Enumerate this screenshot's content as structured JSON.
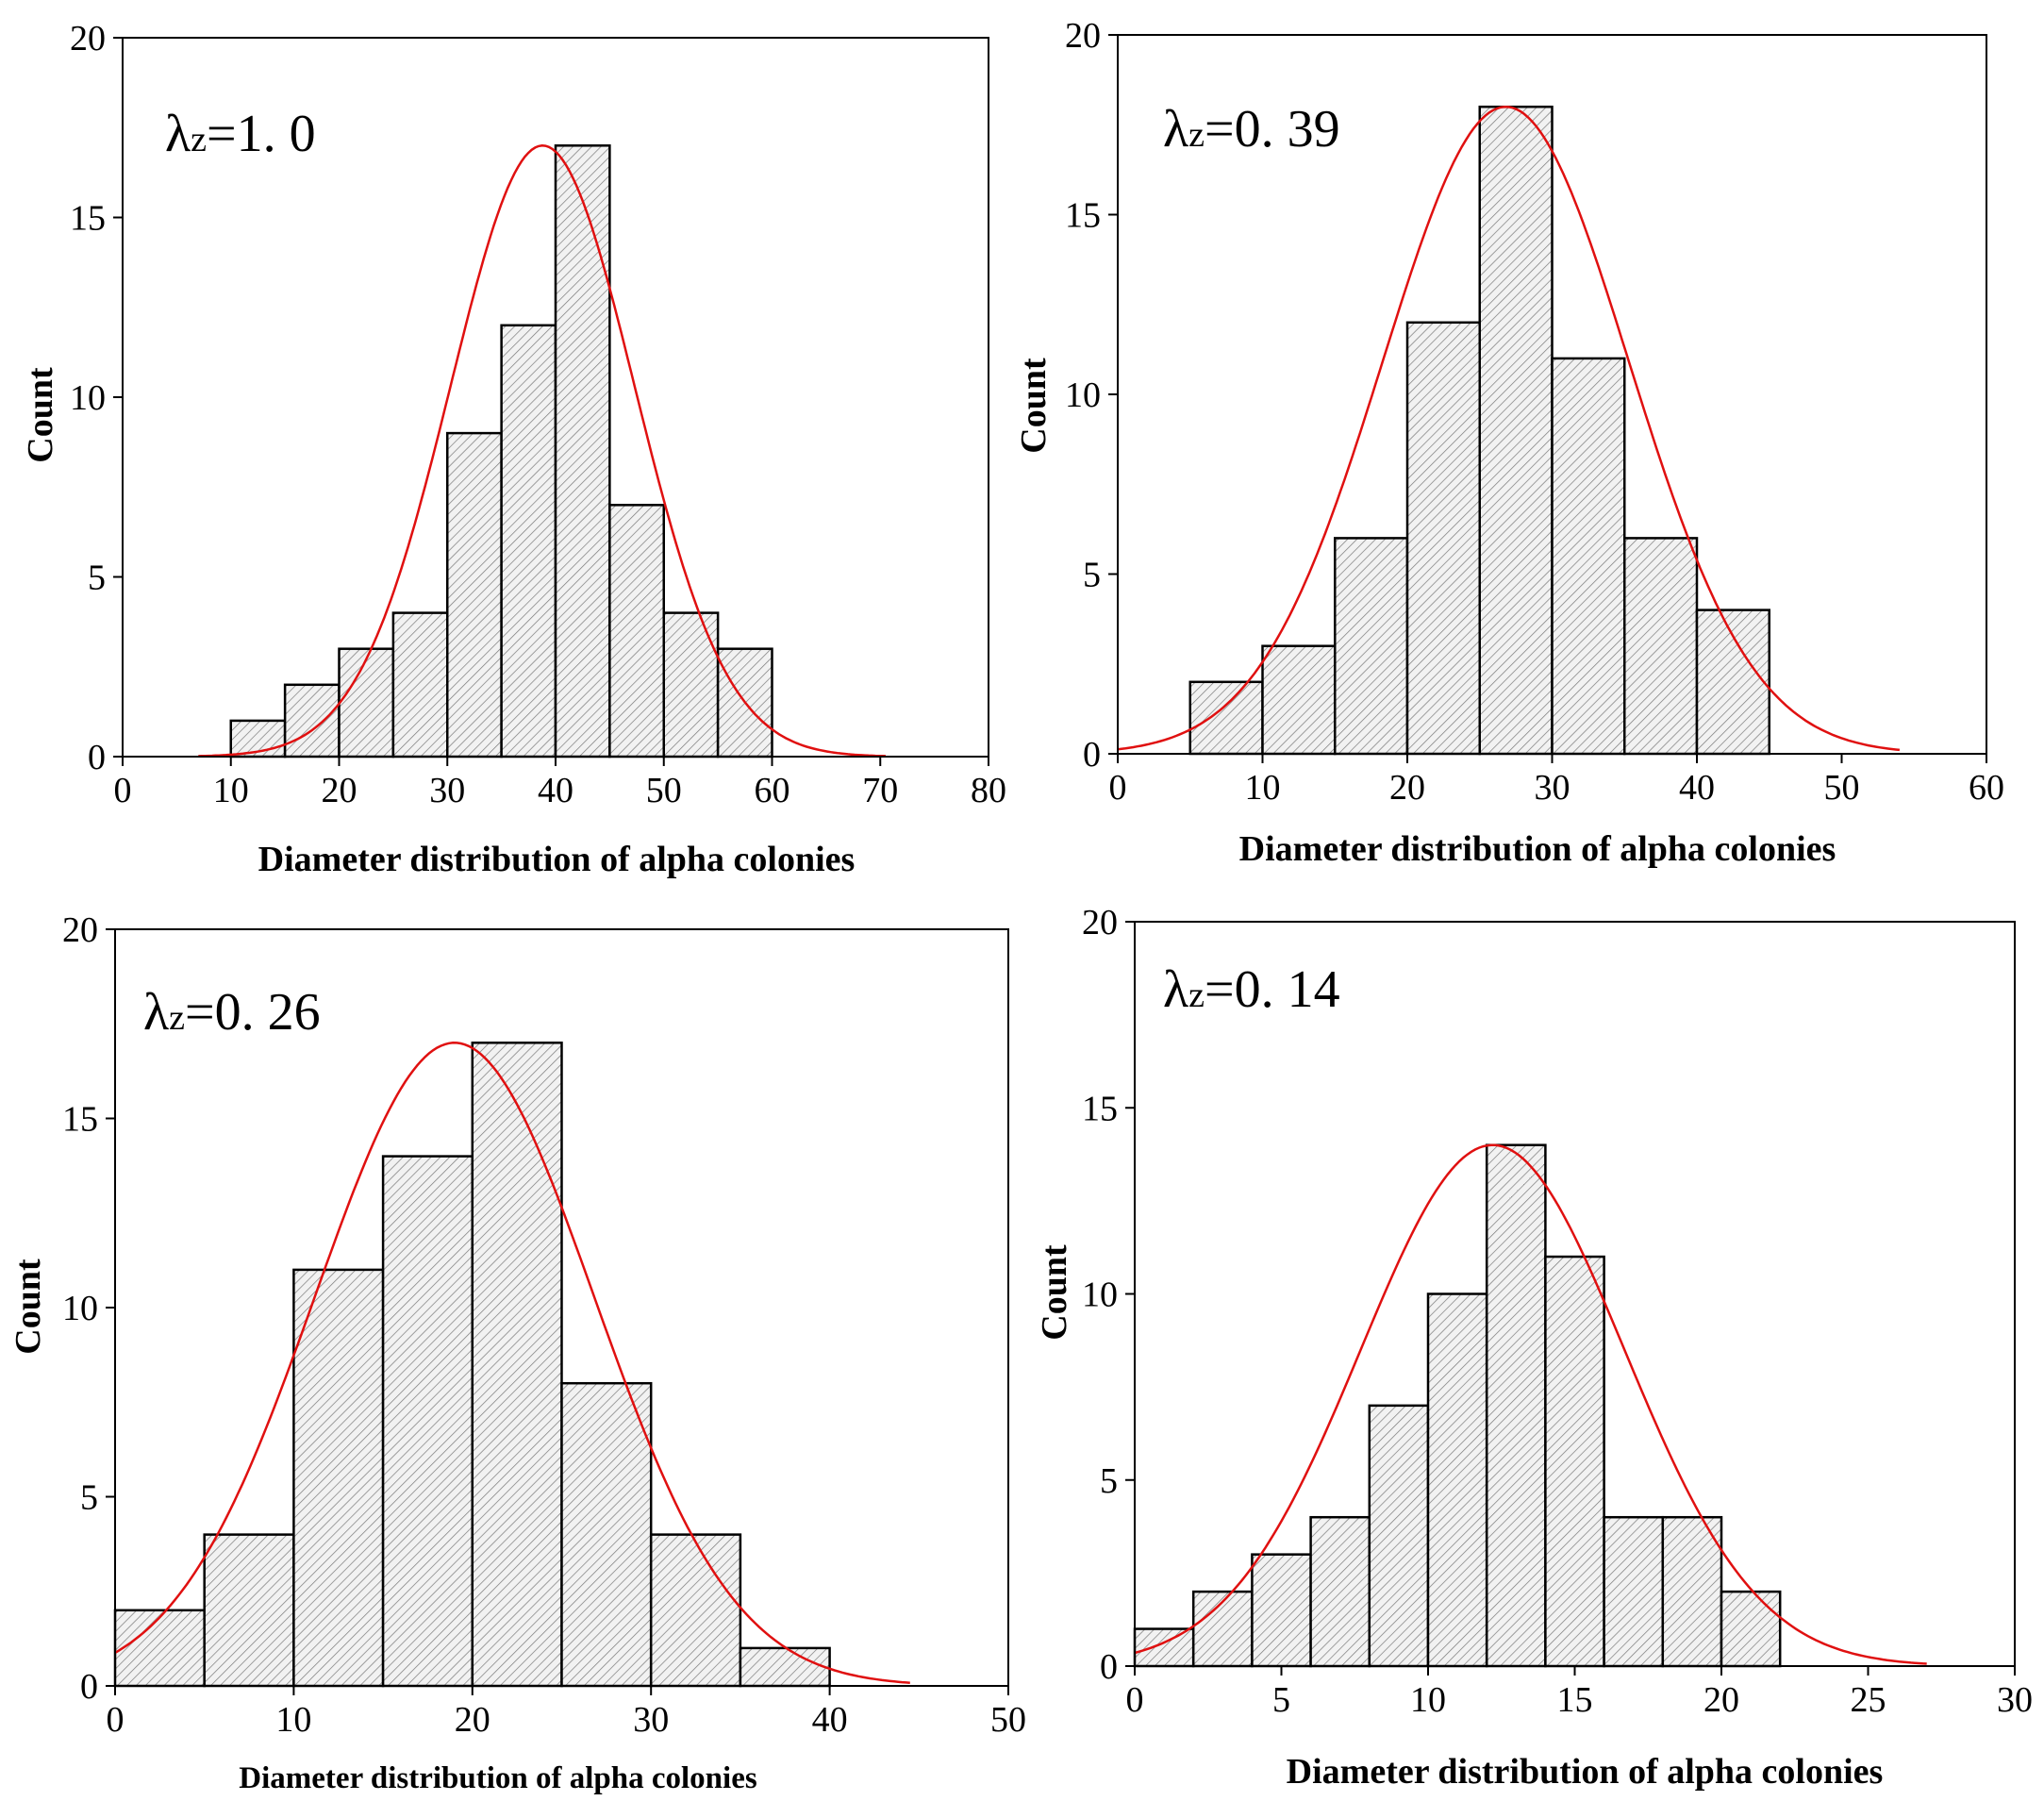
{
  "chart_data": [
    {
      "type": "bar",
      "annotation": {
        "symbol": "λ",
        "subscript": "z",
        "value": "=1. 0"
      },
      "xlabel": "Diameter distribution of alpha colonies",
      "ylabel": "Count",
      "xlim": [
        0,
        80
      ],
      "ylim": [
        0,
        20
      ],
      "xticks": [
        0,
        10,
        20,
        30,
        40,
        50,
        60,
        70,
        80
      ],
      "yticks": [
        0,
        5,
        10,
        15,
        20
      ],
      "bin_width": 5,
      "bins": [
        10,
        15,
        20,
        25,
        30,
        35,
        40,
        45,
        50,
        55
      ],
      "values": [
        1,
        2,
        3,
        4,
        9,
        12,
        17,
        7,
        4,
        3
      ],
      "fit": {
        "mean": 38.8,
        "sd": 8.5,
        "peak": 17,
        "x_range": [
          7,
          70.5
        ]
      }
    },
    {
      "type": "bar",
      "annotation": {
        "symbol": "λ",
        "subscript": "z",
        "value": "=0. 39"
      },
      "xlabel": "Diameter distribution of alpha colonies",
      "ylabel": "Count",
      "xlim": [
        0,
        60
      ],
      "ylim": [
        0,
        20
      ],
      "xticks": [
        0,
        10,
        20,
        30,
        40,
        50,
        60
      ],
      "yticks": [
        0,
        5,
        10,
        15,
        20
      ],
      "bin_width": 5,
      "bins": [
        5,
        10,
        15,
        20,
        25,
        30,
        35,
        40
      ],
      "values": [
        2,
        3,
        6,
        12,
        18,
        11,
        6,
        4
      ],
      "fit": {
        "mean": 26.8,
        "sd": 8.5,
        "peak": 18,
        "x_range": [
          0,
          54
        ]
      }
    },
    {
      "type": "bar",
      "annotation": {
        "symbol": "λ",
        "subscript": "z",
        "value": "=0. 26"
      },
      "xlabel": "Diameter distribution of alpha colonies",
      "ylabel": "Count",
      "xlim": [
        0,
        50
      ],
      "ylim": [
        0,
        20
      ],
      "xticks": [
        0,
        10,
        20,
        30,
        40,
        50
      ],
      "yticks": [
        0,
        5,
        10,
        15,
        20
      ],
      "bin_width": 5,
      "bins": [
        0,
        5,
        10,
        15,
        20,
        25,
        30,
        35
      ],
      "values": [
        2,
        4,
        11,
        14,
        17,
        8,
        4,
        1
      ],
      "fit": {
        "mean": 19.0,
        "sd": 7.8,
        "peak": 17,
        "x_range": [
          0,
          44.5
        ]
      }
    },
    {
      "type": "bar",
      "annotation": {
        "symbol": "λ",
        "subscript": "z",
        "value": "=0. 14"
      },
      "xlabel": "Diameter distribution of alpha colonies",
      "ylabel": "Count",
      "xlim": [
        0,
        30
      ],
      "ylim": [
        0,
        20
      ],
      "xticks": [
        0,
        5,
        10,
        15,
        20,
        25,
        30
      ],
      "yticks": [
        0,
        5,
        10,
        15,
        20
      ],
      "bin_width": 2,
      "bins": [
        0,
        2,
        4,
        6,
        8,
        10,
        12,
        14,
        16,
        18,
        20
      ],
      "values": [
        1,
        2,
        3,
        4,
        7,
        10,
        14,
        11,
        4,
        4,
        2
      ],
      "fit": {
        "mean": 12.2,
        "sd": 4.5,
        "peak": 14,
        "x_range": [
          0,
          27
        ]
      }
    }
  ]
}
